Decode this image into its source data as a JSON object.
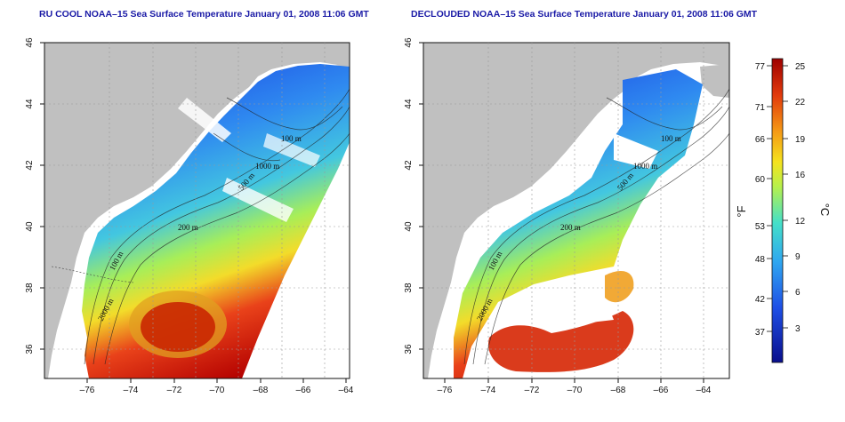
{
  "panels": [
    {
      "title": "RU COOL NOAA–15 Sea Surface Temperature January 01, 2008 11:06 GMT",
      "contour_labels": [
        "100 m",
        "200 m",
        "500 m",
        "1000 m",
        "2000 m",
        "100 m",
        "200 m"
      ]
    },
    {
      "title": "DECLOUDED NOAA–15 Sea Surface Temperature January 01, 2008 11:06 GMT",
      "contour_labels": [
        "100 m",
        "200 m",
        "500 m",
        "1000 m",
        "2000 m",
        "100 m",
        "200 m"
      ]
    }
  ],
  "axes": {
    "x_ticks": [
      "–76",
      "–74",
      "–72",
      "–70",
      "–68",
      "–66",
      "–64"
    ],
    "y_ticks": [
      "46",
      "44",
      "42",
      "40",
      "38",
      "36"
    ]
  },
  "colorbar": {
    "fahrenheit_label": "°F",
    "celsius_label": "°C",
    "fahrenheit_ticks": [
      "77",
      "71",
      "66",
      "60",
      "53",
      "48",
      "42",
      "37"
    ],
    "celsius_ticks": [
      "25",
      "22",
      "19",
      "16",
      "12",
      "9",
      "6",
      "3"
    ]
  },
  "colors": {
    "land": "#c0c0c0",
    "cloud_mask": "#ffffff",
    "title": "#1a1aa6",
    "cold": "#0a1f9e",
    "warm": "#c00000"
  }
}
